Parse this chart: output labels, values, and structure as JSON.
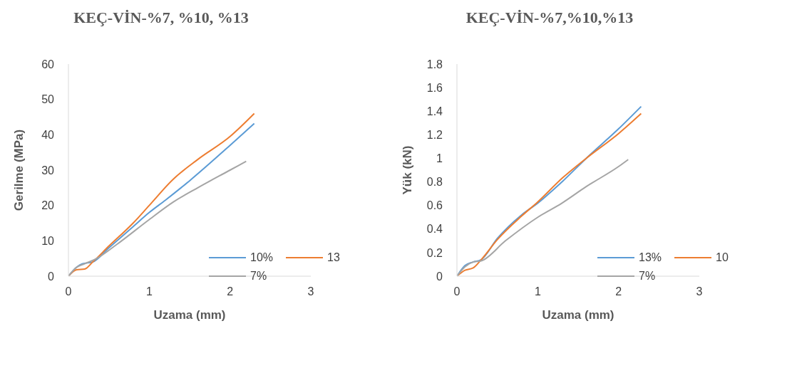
{
  "chart_data": [
    {
      "type": "line",
      "title": "KEÇ-VİN-%7, %10, %13",
      "xlabel": "Uzama (mm)",
      "ylabel": "Gerilme (MPa)",
      "xlim": [
        0,
        3
      ],
      "xticks": [
        0,
        1,
        2,
        3
      ],
      "ylim": [
        0,
        60
      ],
      "yticks": [
        0,
        10,
        20,
        30,
        40,
        50,
        60
      ],
      "grid": false,
      "legend": "bottom right",
      "marker": "none",
      "line_style": "solid",
      "series": [
        {
          "name": "10%",
          "color": "#5b9bd5",
          "x": [
            0,
            0.1,
            0.17,
            0.3,
            0.5,
            0.8,
            1.0,
            1.2,
            1.5,
            2.0,
            2.3
          ],
          "values": [
            0,
            2.5,
            3.5,
            4,
            8,
            14,
            18,
            21.5,
            27,
            37,
            43.2
          ]
        },
        {
          "name": "13",
          "color": "#ed7d31",
          "x": [
            0,
            0.1,
            0.2,
            0.3,
            0.5,
            0.8,
            1.0,
            1.3,
            1.6,
            2.0,
            2.3
          ],
          "values": [
            0,
            1.8,
            2,
            4,
            8.5,
            15,
            20,
            27.5,
            33,
            39.5,
            46
          ]
        },
        {
          "name": "7%",
          "color": "#a5a5a5",
          "x": [
            0,
            0.1,
            0.2,
            0.35,
            0.6,
            1.0,
            1.3,
            1.6,
            2.0,
            2.2
          ],
          "values": [
            0,
            2.5,
            3.5,
            5,
            9,
            16,
            21,
            25,
            30,
            32.5
          ]
        }
      ]
    },
    {
      "type": "line",
      "title": "KEÇ-VİN-%7,%10,%13",
      "xlabel": "Uzama (mm)",
      "ylabel": "Yük (kN)",
      "xlim": [
        0,
        3
      ],
      "xticks": [
        0,
        1,
        2,
        3
      ],
      "ylim": [
        0,
        1.8
      ],
      "yticks": [
        0,
        0.2,
        0.4,
        0.6,
        0.8,
        1,
        1.2,
        1.4,
        1.6,
        1.8
      ],
      "grid": false,
      "legend": "bottom right",
      "marker": "none",
      "line_style": "solid",
      "series": [
        {
          "name": "13%",
          "color": "#5b9bd5",
          "x": [
            0,
            0.1,
            0.2,
            0.3,
            0.5,
            0.8,
            1.0,
            1.3,
            1.6,
            2.0,
            2.28
          ],
          "values": [
            0,
            0.09,
            0.12,
            0.14,
            0.32,
            0.52,
            0.62,
            0.8,
            1.0,
            1.25,
            1.44
          ]
        },
        {
          "name": "10",
          "color": "#ed7d31",
          "x": [
            0,
            0.1,
            0.2,
            0.3,
            0.5,
            0.8,
            1.0,
            1.3,
            1.6,
            2.0,
            2.28
          ],
          "values": [
            0,
            0.05,
            0.07,
            0.14,
            0.31,
            0.51,
            0.63,
            0.83,
            1.0,
            1.21,
            1.38
          ]
        },
        {
          "name": "7%",
          "color": "#a5a5a5",
          "x": [
            0,
            0.1,
            0.2,
            0.3,
            0.6,
            1.0,
            1.3,
            1.6,
            2.0,
            2.12
          ],
          "values": [
            0,
            0.08,
            0.12,
            0.13,
            0.3,
            0.5,
            0.62,
            0.76,
            0.93,
            0.99
          ]
        }
      ]
    }
  ]
}
